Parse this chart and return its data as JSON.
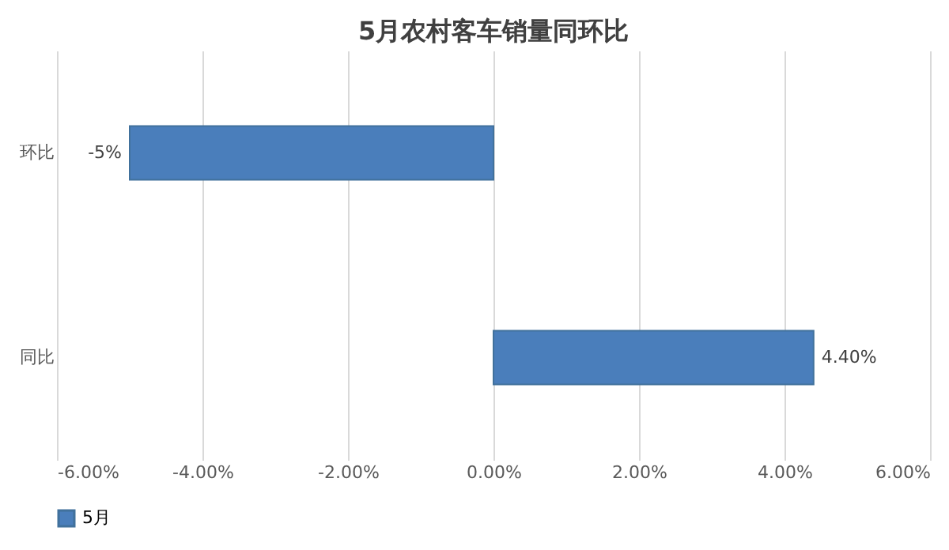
{
  "chart_data": {
    "type": "bar",
    "orientation": "horizontal",
    "title": "5月农村客车销量同环比",
    "categories": [
      "环比",
      "同比"
    ],
    "series": [
      {
        "name": "5月",
        "color": "#4a7ebb",
        "values": [
          -5,
          4.4
        ],
        "value_labels": [
          "-5%",
          "4.40%"
        ]
      }
    ],
    "xlim": [
      -6,
      6
    ],
    "xticks": [
      {
        "value": -6,
        "label": "-6.00%"
      },
      {
        "value": -4,
        "label": "-4.00%"
      },
      {
        "value": -2,
        "label": "-2.00%"
      },
      {
        "value": 0,
        "label": "0.00%"
      },
      {
        "value": 2,
        "label": "2.00%"
      },
      {
        "value": 4,
        "label": "4.00%"
      },
      {
        "value": 6,
        "label": "6.00%"
      }
    ],
    "grid": "x",
    "legend": "bottom"
  }
}
